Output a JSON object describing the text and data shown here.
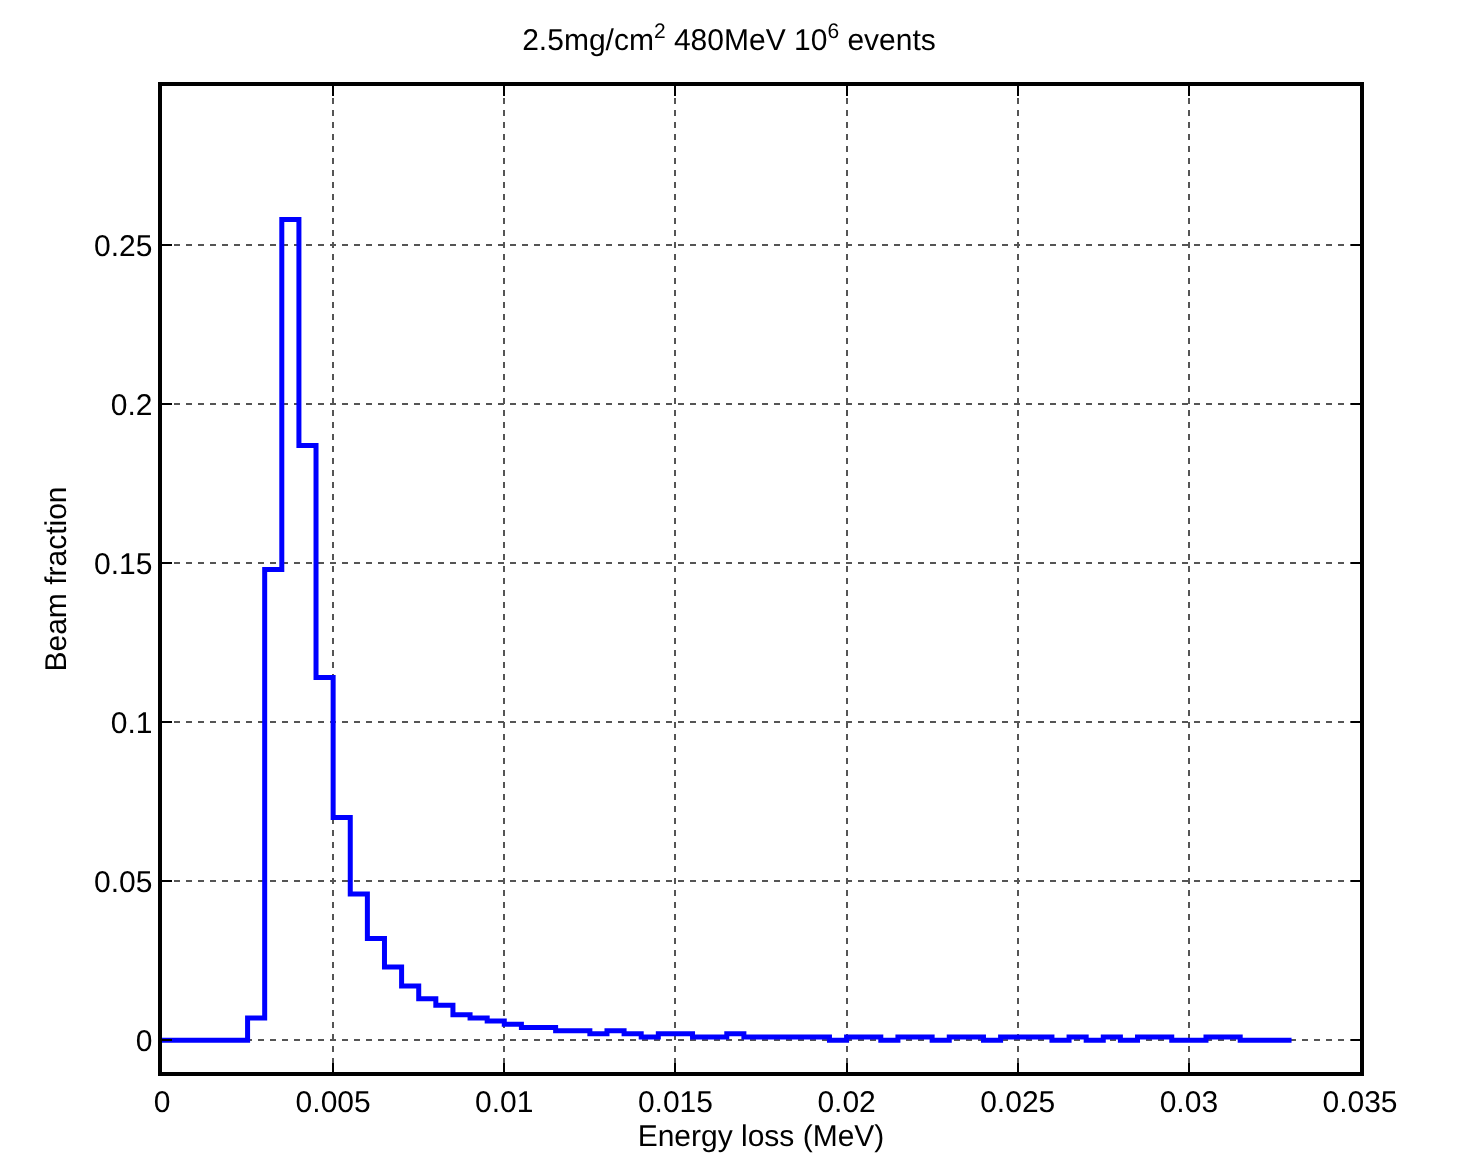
{
  "chart_data": {
    "type": "histogram",
    "title": "2.5mg/cm$^{2}$ 480MeV 10$^{6}$ events",
    "xlabel": "Energy loss (MeV)",
    "ylabel": "Beam fraction",
    "color": "#0000ff",
    "bins": [
      0,
      0.0005,
      0.001,
      0.0015,
      0.002,
      0.0025,
      0.003,
      0.0035,
      0.004,
      0.0045,
      0.005,
      0.0055,
      0.006,
      0.0065,
      0.007,
      0.0075,
      0.008,
      0.0085,
      0.009,
      0.0095,
      0.01,
      0.0105,
      0.011,
      0.0115,
      0.012,
      0.0125,
      0.013,
      0.0135,
      0.014,
      0.0145,
      0.015,
      0.0155,
      0.016,
      0.0165,
      0.017,
      0.0175,
      0.018,
      0.0185,
      0.019,
      0.0195,
      0.02,
      0.0205,
      0.021,
      0.0215,
      0.022,
      0.0225,
      0.023,
      0.0235,
      0.024,
      0.0245,
      0.025,
      0.0255,
      0.026,
      0.0265,
      0.027,
      0.0275,
      0.028,
      0.0285,
      0.029,
      0.0295,
      0.03,
      0.0305,
      0.031,
      0.0315,
      0.032,
      0.0325,
      0.033
    ],
    "values": [
      0,
      0,
      0,
      0,
      0,
      0.007,
      0.148,
      0.258,
      0.187,
      0.114,
      0.07,
      0.046,
      0.032,
      0.023,
      0.017,
      0.013,
      0.011,
      0.008,
      0.007,
      0.006,
      0.005,
      0.004,
      0.004,
      0.003,
      0.003,
      0.002,
      0.003,
      0.002,
      0.001,
      0.002,
      0.002,
      0.001,
      0.001,
      0.002,
      0.001,
      0.001,
      0.001,
      0.001,
      0.001,
      0,
      0.001,
      0.001,
      0,
      0.001,
      0.001,
      0,
      0.001,
      0.001,
      0,
      0.001,
      0.001,
      0.001,
      0,
      0.001,
      0,
      0.001,
      0,
      0.001,
      0.001,
      0,
      0,
      0.001,
      0.001,
      0,
      0,
      0
    ],
    "xlim": [
      0,
      0.035
    ],
    "xticks": [
      0,
      0.005,
      0.01,
      0.015,
      0.02,
      0.025,
      0.03,
      0.035
    ],
    "ylim": [
      -0.01,
      0.3
    ],
    "yticks": [
      0,
      0.05,
      0.1,
      0.15,
      0.2,
      0.25
    ],
    "grid": true,
    "line_style": "solid"
  }
}
